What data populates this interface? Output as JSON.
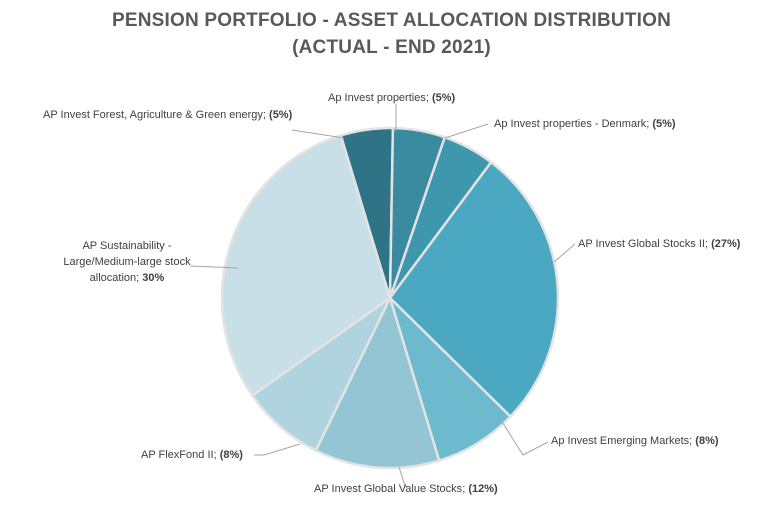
{
  "chart_data": {
    "type": "pie",
    "title_lines": [
      "PENSION PORTFOLIO - ASSET ALLOCATION DISTRIBUTION",
      "(ACTUAL - END 2021)"
    ],
    "slices": [
      {
        "label": "Ap Invest properties - Denmark",
        "value": 5,
        "pct": "(5%)",
        "color": "#3d97ad"
      },
      {
        "label": "AP Invest Global Stocks II",
        "value": 27,
        "pct": "(27%)",
        "color": "#4aa8c2"
      },
      {
        "label": "Ap Invest Emerging Markets",
        "value": 8,
        "pct": "(8%)",
        "color": "#6db9cd"
      },
      {
        "label": "AP Invest Global Value Stocks",
        "value": 12,
        "pct": "(12%)",
        "color": "#93c5d5"
      },
      {
        "label": "AP FlexFond II",
        "value": 8,
        "pct": "(8%)",
        "color": "#afd4e0"
      },
      {
        "label": "AP Sustainability - Large/Medium-large stock allocation",
        "value": 30,
        "pct": "30%",
        "color": "#c8dfe7"
      },
      {
        "label": "AP Invest Forest, Agriculture & Green energy",
        "value": 5,
        "pct": "(5%)",
        "color": "#2f7386"
      },
      {
        "label": "Ap Invest properties",
        "value": 5,
        "pct": "(5%)",
        "color": "#3a8aa0"
      }
    ]
  }
}
